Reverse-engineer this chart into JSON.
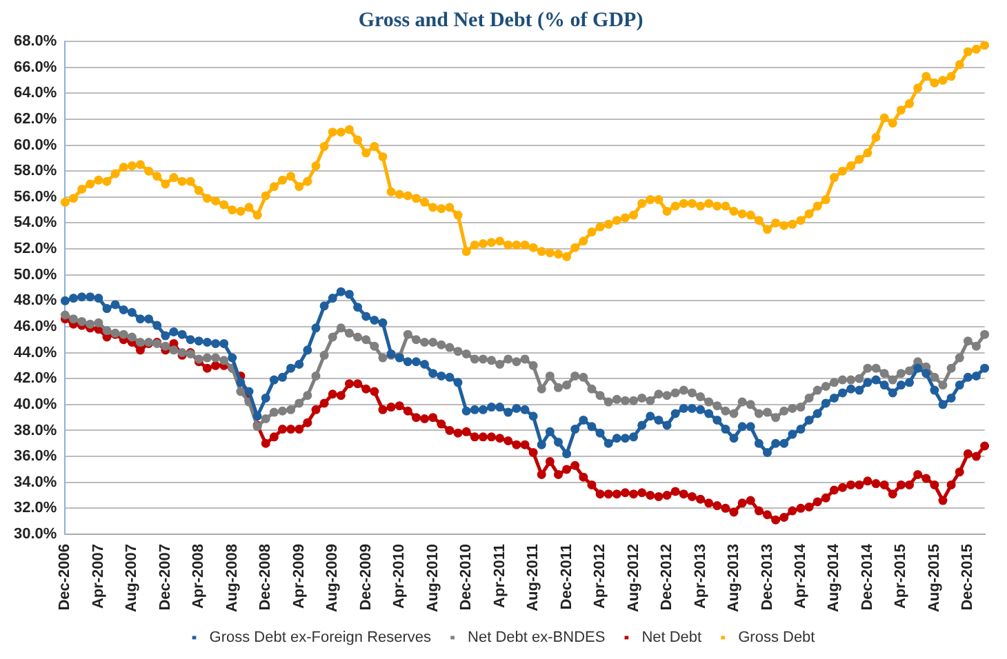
{
  "chart_data": {
    "type": "line",
    "title": "Gross and Net Debt (% of GDP)",
    "categories": [
      "Dec-2006",
      null,
      null,
      null,
      "Apr-2007",
      null,
      null,
      null,
      "Aug-2007",
      null,
      null,
      null,
      "Dec-2007",
      null,
      null,
      null,
      "Apr-2008",
      null,
      null,
      null,
      "Aug-2008",
      null,
      null,
      null,
      "Dec-2008",
      null,
      null,
      null,
      "Apr-2009",
      null,
      null,
      null,
      "Aug-2009",
      null,
      null,
      null,
      "Dec-2009",
      null,
      null,
      null,
      "Apr-2010",
      null,
      null,
      null,
      "Aug-2010",
      null,
      null,
      null,
      "Dec-2010",
      null,
      null,
      null,
      "Apr-2011",
      null,
      null,
      null,
      "Aug-2011",
      null,
      null,
      null,
      "Dec-2011",
      null,
      null,
      null,
      "Apr-2012",
      null,
      null,
      null,
      "Aug-2012",
      null,
      null,
      null,
      "Dec-2012",
      null,
      null,
      null,
      "Apr-2013",
      null,
      null,
      null,
      "Aug-2013",
      null,
      null,
      null,
      "Dec-2013",
      null,
      null,
      null,
      "Apr-2014",
      null,
      null,
      null,
      "Aug-2014",
      null,
      null,
      null,
      "Dec-2014",
      null,
      null,
      null,
      "Apr-2015",
      null,
      null,
      null,
      "Aug-2015",
      null,
      null,
      null,
      "Dec-2015",
      null,
      null
    ],
    "series": [
      {
        "name": "Gross Debt ex-Foreign Reserves",
        "color": "#1f5f9e",
        "values": [
          48.0,
          48.2,
          48.3,
          48.3,
          48.2,
          47.4,
          47.7,
          47.3,
          47.1,
          46.6,
          46.6,
          46.1,
          45.3,
          45.6,
          45.4,
          45.0,
          44.9,
          44.8,
          44.7,
          44.7,
          43.6,
          41.7,
          41.0,
          39.1,
          40.5,
          41.9,
          42.1,
          42.8,
          43.1,
          44.2,
          45.9,
          47.6,
          48.2,
          48.7,
          48.5,
          47.5,
          46.8,
          46.5,
          46.3,
          43.9,
          43.6,
          43.3,
          43.3,
          43.1,
          42.4,
          42.2,
          42.1,
          41.7,
          39.5,
          39.6,
          39.6,
          39.8,
          39.8,
          39.4,
          39.7,
          39.6,
          39.1,
          36.9,
          37.9,
          37.1,
          36.2,
          38.1,
          38.8,
          38.3,
          37.8,
          37.0,
          37.4,
          37.4,
          37.5,
          38.4,
          39.1,
          38.8,
          38.4,
          39.3,
          39.7,
          39.7,
          39.6,
          39.3,
          38.8,
          38.1,
          37.4,
          38.3,
          38.3,
          37.0,
          36.3,
          37.0,
          37.0,
          37.7,
          38.1,
          38.8,
          39.3,
          40.1,
          40.5,
          40.9,
          41.2,
          41.1,
          41.7,
          41.9,
          41.5,
          40.9,
          41.5,
          41.7,
          42.8,
          42.4,
          41.1,
          40.0,
          40.5,
          41.5,
          42.1,
          42.2,
          42.8
        ]
      },
      {
        "name": "Net Debt ex-BNDES",
        "color": "#7f7f7f",
        "values": [
          46.9,
          46.6,
          46.4,
          46.2,
          46.3,
          45.7,
          45.5,
          45.4,
          45.2,
          44.8,
          44.8,
          44.7,
          44.5,
          44.2,
          44.0,
          43.9,
          43.5,
          43.6,
          43.6,
          43.4,
          42.8,
          41.0,
          40.2,
          38.3,
          38.9,
          39.4,
          39.5,
          39.6,
          40.1,
          40.7,
          42.2,
          43.8,
          45.2,
          45.9,
          45.5,
          45.2,
          45.0,
          44.5,
          43.6,
          43.8,
          43.7,
          45.4,
          45.0,
          44.8,
          44.8,
          44.6,
          44.4,
          44.1,
          43.9,
          43.5,
          43.5,
          43.4,
          43.1,
          43.5,
          43.3,
          43.5,
          43.0,
          41.2,
          42.2,
          41.3,
          41.5,
          42.2,
          42.1,
          41.2,
          40.7,
          40.2,
          40.4,
          40.3,
          40.3,
          40.5,
          40.3,
          40.8,
          40.7,
          40.9,
          41.1,
          40.9,
          40.6,
          40.2,
          39.9,
          39.5,
          39.3,
          40.2,
          40.0,
          39.3,
          39.4,
          39.0,
          39.5,
          39.7,
          39.8,
          40.5,
          41.1,
          41.4,
          41.7,
          41.9,
          41.9,
          42.0,
          42.8,
          42.8,
          42.4,
          41.9,
          42.4,
          42.6,
          43.3,
          42.9,
          42.1,
          41.5,
          42.8,
          43.6,
          44.9,
          44.5,
          45.4
        ]
      },
      {
        "name": "Net Debt",
        "color": "#c00000",
        "values": [
          46.6,
          46.2,
          46.1,
          45.9,
          45.8,
          45.2,
          45.4,
          45.0,
          44.8,
          44.2,
          44.7,
          44.8,
          44.2,
          44.7,
          43.8,
          44.0,
          43.3,
          42.8,
          43.0,
          43.0,
          42.8,
          42.2,
          40.3,
          38.4,
          37.0,
          37.5,
          38.1,
          38.1,
          38.1,
          38.6,
          39.6,
          40.1,
          40.8,
          40.7,
          41.6,
          41.6,
          41.2,
          41.0,
          39.6,
          39.8,
          39.9,
          39.5,
          39.0,
          38.9,
          39.0,
          38.5,
          38.0,
          37.8,
          37.9,
          37.5,
          37.5,
          37.5,
          37.4,
          37.2,
          36.9,
          36.9,
          36.3,
          34.6,
          35.6,
          34.6,
          35.0,
          35.3,
          34.4,
          33.8,
          33.1,
          33.1,
          33.1,
          33.2,
          33.1,
          33.2,
          33.0,
          32.9,
          33.0,
          33.3,
          33.1,
          32.9,
          32.7,
          32.4,
          32.2,
          32.0,
          31.7,
          32.4,
          32.6,
          31.8,
          31.5,
          31.1,
          31.3,
          31.8,
          32.0,
          32.1,
          32.5,
          32.8,
          33.4,
          33.6,
          33.8,
          33.8,
          34.1,
          33.9,
          33.8,
          33.1,
          33.8,
          33.8,
          34.6,
          34.3,
          33.8,
          32.6,
          33.8,
          34.8,
          36.2,
          36.0,
          36.8
        ]
      },
      {
        "name": "Gross Debt",
        "color": "#ffb000",
        "values": [
          55.6,
          55.9,
          56.6,
          57.0,
          57.3,
          57.2,
          57.8,
          58.3,
          58.4,
          58.5,
          58.0,
          57.6,
          57.0,
          57.5,
          57.2,
          57.2,
          56.5,
          55.9,
          55.7,
          55.4,
          55.0,
          54.9,
          55.2,
          54.6,
          56.1,
          56.8,
          57.3,
          57.6,
          56.8,
          57.2,
          58.4,
          59.9,
          61.0,
          61.0,
          61.2,
          60.4,
          59.4,
          59.9,
          59.1,
          56.4,
          56.2,
          56.1,
          55.9,
          55.6,
          55.2,
          55.1,
          55.2,
          54.6,
          51.8,
          52.3,
          52.4,
          52.5,
          52.6,
          52.3,
          52.3,
          52.3,
          52.1,
          51.8,
          51.7,
          51.6,
          51.4,
          52.1,
          52.6,
          53.3,
          53.7,
          53.9,
          54.2,
          54.4,
          54.6,
          55.5,
          55.8,
          55.8,
          54.9,
          55.3,
          55.5,
          55.5,
          55.3,
          55.5,
          55.3,
          55.3,
          54.9,
          54.7,
          54.6,
          54.2,
          53.5,
          54.0,
          53.8,
          53.9,
          54.2,
          54.7,
          55.3,
          55.8,
          57.5,
          58.0,
          58.4,
          58.9,
          59.4,
          60.6,
          62.1,
          61.7,
          62.7,
          63.2,
          64.4,
          65.3,
          64.8,
          65.0,
          65.3,
          66.2,
          67.2,
          67.4,
          67.7
        ]
      }
    ],
    "ylim": [
      30,
      68
    ],
    "yticks": [
      {
        "value": 30,
        "label": "30.0%"
      },
      {
        "value": 32,
        "label": "32.0%"
      },
      {
        "value": 34,
        "label": "34.0%"
      },
      {
        "value": 36,
        "label": "36.0%"
      },
      {
        "value": 38,
        "label": "38.0%"
      },
      {
        "value": 40,
        "label": "40.0%"
      },
      {
        "value": 42,
        "label": "42.0%"
      },
      {
        "value": 44,
        "label": "44.0%"
      },
      {
        "value": 46,
        "label": "46.0%"
      },
      {
        "value": 48,
        "label": "48.0%"
      },
      {
        "value": 50,
        "label": "50.0%"
      },
      {
        "value": 52,
        "label": "52.0%"
      },
      {
        "value": 54,
        "label": "54.0%"
      },
      {
        "value": 56,
        "label": "56.0%"
      },
      {
        "value": 58,
        "label": "58.0%"
      },
      {
        "value": 60,
        "label": "60.0%"
      },
      {
        "value": 62,
        "label": "62.0%"
      },
      {
        "value": 64,
        "label": "64.0%"
      },
      {
        "value": 66,
        "label": "66.0%"
      },
      {
        "value": 68,
        "label": "68.0%"
      }
    ],
    "grid": "y",
    "legend": "bottom",
    "marker": "circle"
  }
}
